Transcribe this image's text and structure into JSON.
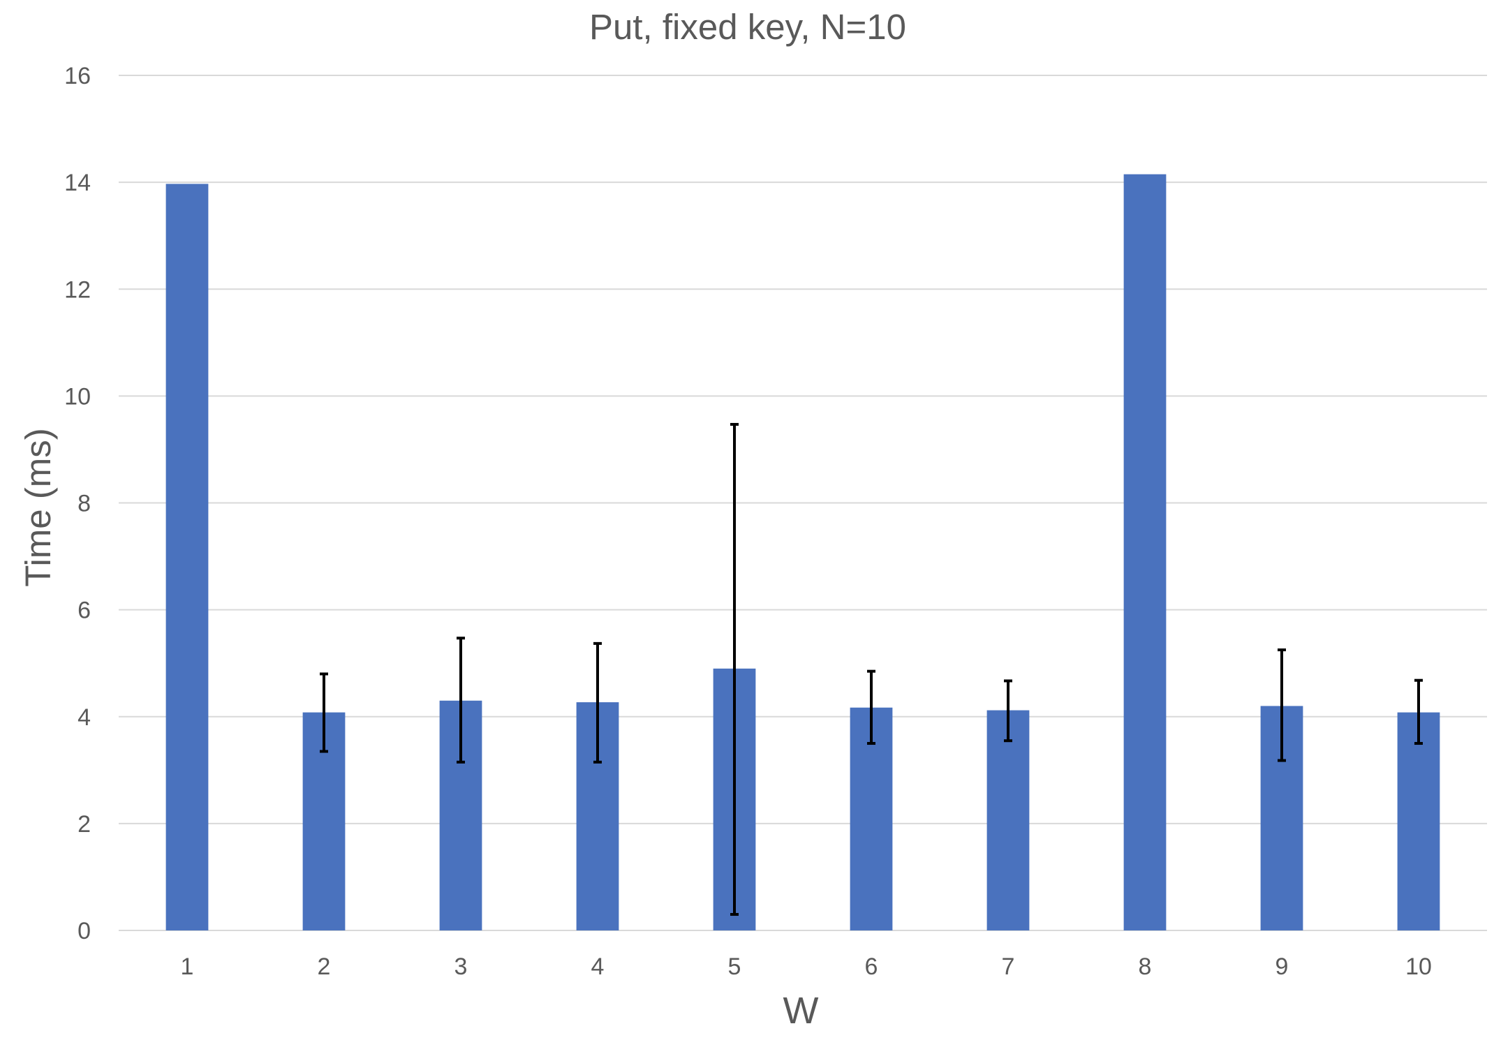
{
  "chart_data": {
    "type": "bar",
    "title": "Put, fixed key, N=10",
    "xlabel": "W",
    "ylabel": "Time (ms)",
    "categories": [
      "1",
      "2",
      "3",
      "4",
      "5",
      "6",
      "7",
      "8",
      "9",
      "10"
    ],
    "values": [
      13.97,
      4.08,
      4.3,
      4.27,
      4.9,
      4.17,
      4.12,
      14.15,
      4.2,
      4.08
    ],
    "error_low": [
      null,
      3.35,
      3.15,
      3.15,
      0.3,
      3.5,
      3.55,
      null,
      3.18,
      3.5
    ],
    "error_high": [
      null,
      4.8,
      5.47,
      5.37,
      9.47,
      4.85,
      4.67,
      null,
      5.25,
      4.68
    ],
    "ylim": [
      0,
      16
    ],
    "yticks": [
      0,
      2,
      4,
      6,
      8,
      10,
      12,
      14,
      16
    ],
    "grid": true,
    "legend": "none",
    "bar_color": "#4a72be",
    "error_bar_color": "#000000"
  }
}
